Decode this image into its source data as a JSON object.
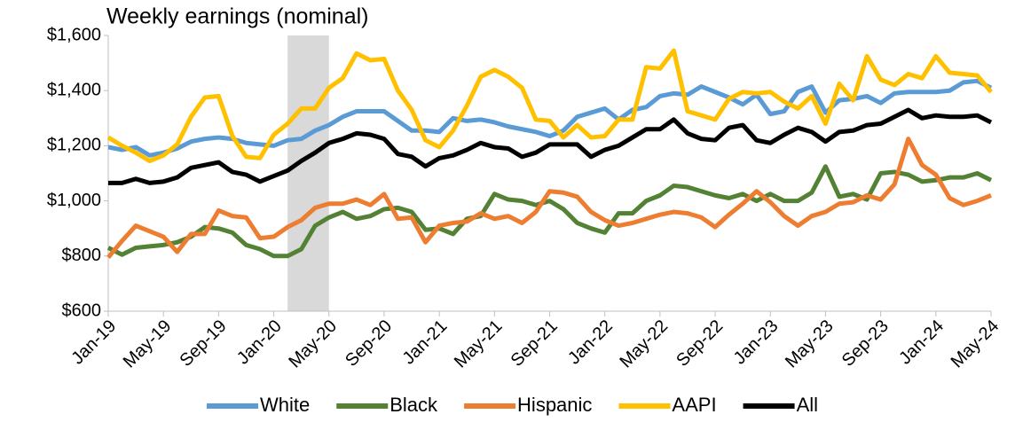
{
  "chart_data": {
    "type": "line",
    "title": "Weekly earnings (nominal)",
    "categories": [
      "Jan-19",
      null,
      null,
      null,
      "May-19",
      null,
      null,
      null,
      "Sep-19",
      null,
      null,
      null,
      "Jan-20",
      null,
      null,
      null,
      "May-20",
      null,
      null,
      null,
      "Sep-20",
      null,
      null,
      null,
      "Jan-21",
      null,
      null,
      null,
      "May-21",
      null,
      null,
      null,
      "Sep-21",
      null,
      null,
      null,
      "Jan-22",
      null,
      null,
      null,
      "May-22",
      null,
      null,
      null,
      "Sep-22",
      null,
      null,
      null,
      "Jan-23",
      null,
      null,
      null,
      "May-23",
      null,
      null,
      null,
      "Sep-23",
      null,
      null,
      null,
      "Jan-24",
      null,
      null,
      null,
      "May-24"
    ],
    "shaded_span": [
      13,
      16
    ],
    "ylim": [
      600,
      1600
    ],
    "yticks": [
      {
        "value": 600,
        "label": "$600"
      },
      {
        "value": 800,
        "label": "$800"
      },
      {
        "value": 1000,
        "label": "$1,000"
      },
      {
        "value": 1200,
        "label": "$1,200"
      },
      {
        "value": 1400,
        "label": "$1,400"
      },
      {
        "value": 1600,
        "label": "$1,600"
      }
    ],
    "grid": false,
    "legend": "bottom",
    "series": [
      {
        "name": "White",
        "color": "#5b9bd5",
        "values": [
          1195,
          1185,
          1195,
          1165,
          1175,
          1190,
          1215,
          1225,
          1230,
          1225,
          1210,
          1205,
          1200,
          1220,
          1225,
          1255,
          1275,
          1305,
          1325,
          1325,
          1325,
          1290,
          1255,
          1255,
          1250,
          1300,
          1290,
          1295,
          1285,
          1270,
          1260,
          1250,
          1235,
          1255,
          1305,
          1320,
          1335,
          1295,
          1330,
          1340,
          1380,
          1390,
          1385,
          1415,
          1395,
          1375,
          1350,
          1385,
          1315,
          1325,
          1395,
          1415,
          1320,
          1365,
          1370,
          1380,
          1355,
          1390,
          1395,
          1395,
          1395,
          1400,
          1430,
          1435,
          1410
        ]
      },
      {
        "name": "Black",
        "color": "#548235",
        "values": [
          830,
          805,
          830,
          835,
          840,
          850,
          870,
          905,
          900,
          885,
          840,
          825,
          800,
          800,
          825,
          910,
          940,
          960,
          935,
          945,
          970,
          975,
          960,
          895,
          900,
          880,
          935,
          945,
          1025,
          1005,
          1000,
          985,
          1000,
          970,
          920,
          900,
          885,
          955,
          955,
          1000,
          1020,
          1055,
          1050,
          1035,
          1020,
          1010,
          1025,
          1000,
          1025,
          1000,
          1000,
          1030,
          1125,
          1015,
          1025,
          1005,
          1100,
          1105,
          1095,
          1070,
          1075,
          1085,
          1085,
          1100,
          1075
        ]
      },
      {
        "name": "Hispanic",
        "color": "#ed7d31",
        "values": [
          795,
          855,
          910,
          890,
          870,
          815,
          880,
          880,
          965,
          945,
          940,
          865,
          870,
          905,
          930,
          975,
          990,
          990,
          1005,
          985,
          1025,
          935,
          940,
          850,
          910,
          920,
          925,
          955,
          935,
          945,
          920,
          960,
          1035,
          1030,
          1015,
          960,
          930,
          910,
          920,
          935,
          950,
          960,
          955,
          940,
          905,
          950,
          990,
          1035,
          995,
          945,
          910,
          945,
          960,
          990,
          995,
          1020,
          1005,
          1060,
          1225,
          1130,
          1095,
          1010,
          985,
          1000,
          1020
        ]
      },
      {
        "name": "AAPI",
        "color": "#ffc000",
        "values": [
          1230,
          1200,
          1175,
          1145,
          1165,
          1205,
          1305,
          1375,
          1380,
          1235,
          1160,
          1155,
          1240,
          1280,
          1335,
          1335,
          1410,
          1445,
          1535,
          1510,
          1515,
          1400,
          1330,
          1220,
          1195,
          1255,
          1345,
          1450,
          1475,
          1450,
          1410,
          1295,
          1290,
          1230,
          1275,
          1230,
          1235,
          1295,
          1295,
          1485,
          1480,
          1545,
          1325,
          1310,
          1295,
          1370,
          1395,
          1390,
          1395,
          1360,
          1335,
          1380,
          1280,
          1425,
          1365,
          1525,
          1440,
          1420,
          1460,
          1445,
          1525,
          1465,
          1460,
          1455,
          1395
        ]
      },
      {
        "name": "All",
        "color": "#000000",
        "values": [
          1065,
          1065,
          1080,
          1065,
          1070,
          1085,
          1120,
          1130,
          1140,
          1105,
          1095,
          1070,
          1090,
          1110,
          1145,
          1175,
          1210,
          1225,
          1245,
          1240,
          1225,
          1170,
          1160,
          1125,
          1155,
          1165,
          1185,
          1210,
          1195,
          1190,
          1160,
          1175,
          1205,
          1205,
          1205,
          1160,
          1185,
          1200,
          1230,
          1260,
          1260,
          1295,
          1245,
          1225,
          1220,
          1265,
          1275,
          1220,
          1210,
          1240,
          1265,
          1250,
          1215,
          1250,
          1255,
          1275,
          1280,
          1305,
          1330,
          1300,
          1310,
          1305,
          1305,
          1310,
          1285
        ]
      }
    ]
  }
}
